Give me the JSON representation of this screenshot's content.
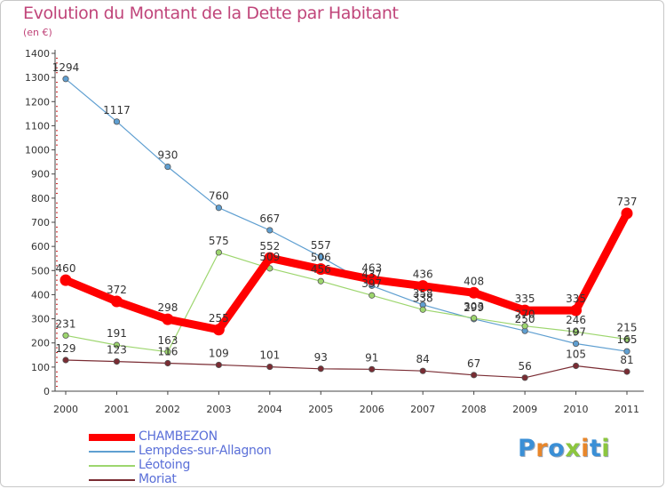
{
  "title": "Evolution du Montant de la Dette par Habitant",
  "unit_label": "(en €)",
  "logo": {
    "text": "Proxiti",
    "letter_colors": [
      "#3a8fd6",
      "#e8862a",
      "#3a8fd6",
      "#8cc63e",
      "#e8862a",
      "#3a8fd6",
      "#8cc63e"
    ]
  },
  "chart_data": {
    "type": "line",
    "x": [
      "2000",
      "2001",
      "2002",
      "2003",
      "2004",
      "2005",
      "2006",
      "2007",
      "2008",
      "2009",
      "2010",
      "2011"
    ],
    "ylim": [
      0,
      1400
    ],
    "yticks": [
      0,
      100,
      200,
      300,
      400,
      500,
      600,
      700,
      800,
      900,
      1000,
      1100,
      1200,
      1300,
      1400
    ],
    "grid": false,
    "legend_position": "bottom-left",
    "series": [
      {
        "name": "Lempdes-sur-Allagnon",
        "color": "#5f9fd1",
        "values": [
          1294,
          1117,
          930,
          760,
          667,
          557,
          437,
          358,
          299,
          250,
          197,
          165
        ],
        "labels": [
          "1294",
          "1117",
          "930",
          "760",
          "667",
          "557",
          "437",
          "358",
          "299",
          "250",
          "197",
          "165"
        ]
      },
      {
        "name": "Léotoing",
        "color": "#9dd66e",
        "values": [
          231,
          191,
          163,
          575,
          509,
          456,
          397,
          338,
          303,
          270,
          246,
          215
        ],
        "labels": [
          "231",
          "191",
          "163",
          "575",
          "509",
          "456",
          "397",
          "338",
          "303",
          "270",
          "246",
          "215"
        ]
      },
      {
        "name": "Moriat",
        "color": "#7a2c33",
        "values": [
          129,
          123,
          116,
          109,
          101,
          93,
          91,
          84,
          67,
          56,
          105,
          81
        ],
        "labels": [
          "129",
          "123",
          "116",
          "109",
          "101",
          "93",
          "91",
          "84",
          "67",
          "56",
          "105",
          "81"
        ]
      },
      {
        "name": "CHAMBEZON",
        "color": "#ff0000",
        "values": [
          460,
          372,
          298,
          255,
          552,
          506,
          463,
          436,
          408,
          335,
          335,
          737
        ],
        "labels": [
          "460",
          "372",
          "298",
          "255",
          "552",
          "506",
          "463",
          "436",
          "408",
          "335",
          "335",
          "737"
        ]
      }
    ]
  }
}
